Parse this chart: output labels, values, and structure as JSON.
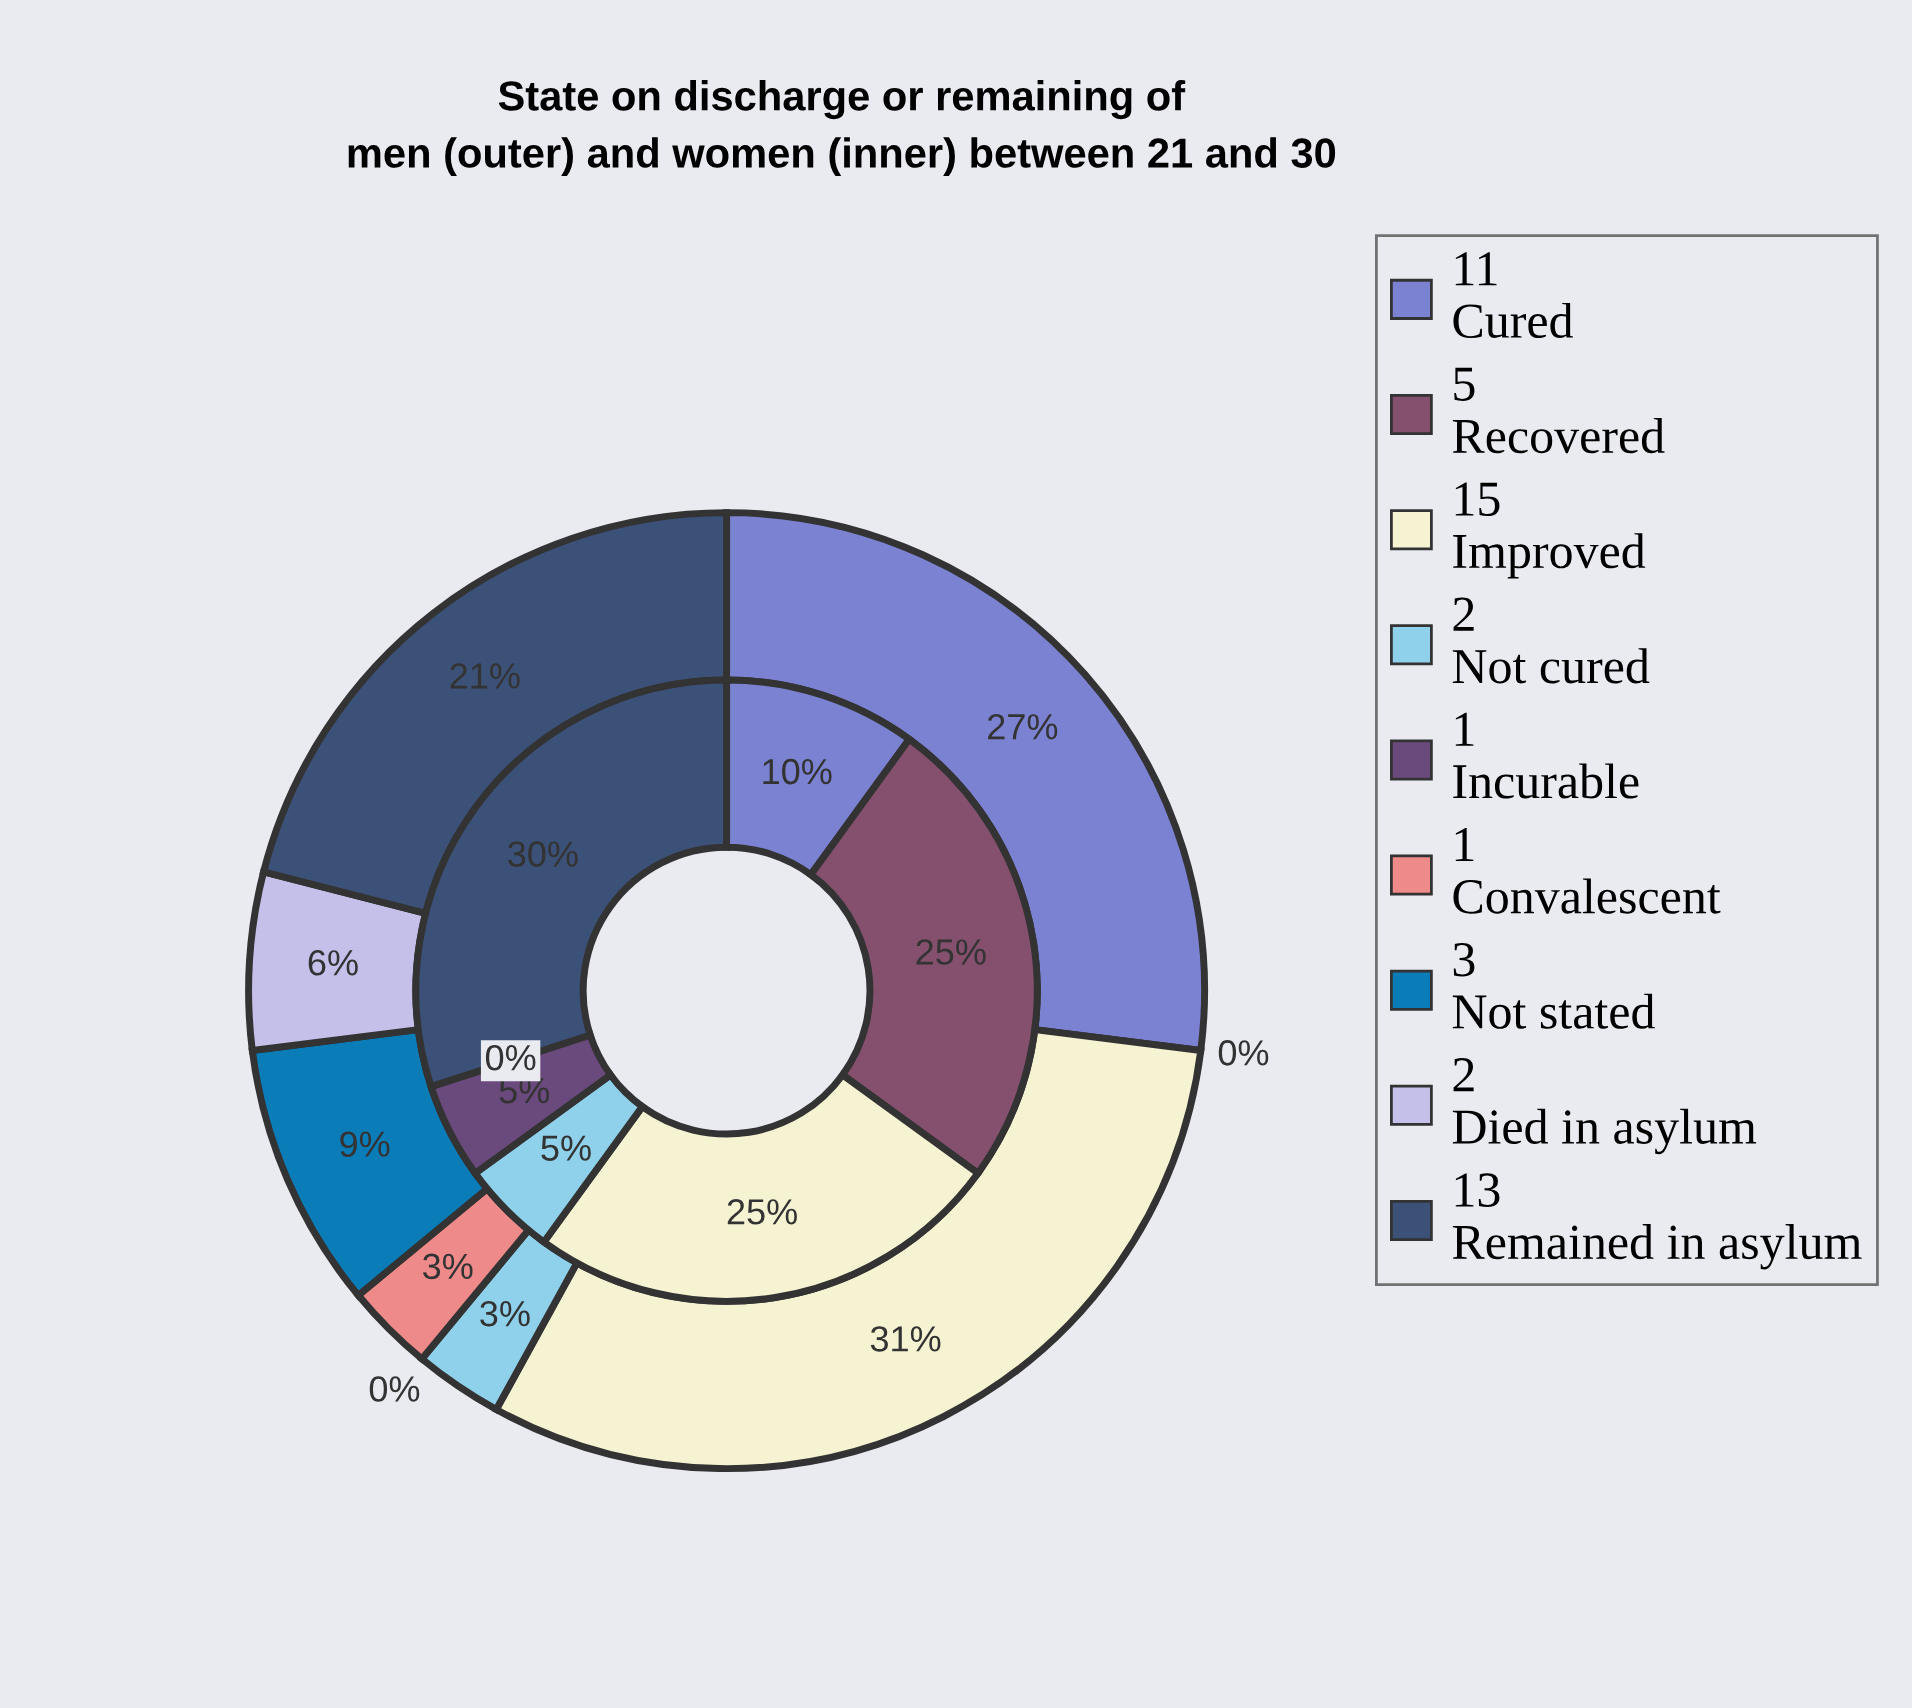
{
  "chart_data": {
    "type": "donut",
    "title": "State on discharge or remaining of\nmen (outer) and women (inner) between 21 and 30",
    "categories": [
      "11\nCured",
      "5\nRecovered",
      "15\nImproved",
      "2\nNot cured",
      "1\nIncurable",
      "1\nConvalescent",
      "3\nNot stated",
      "2\nDied in asylum",
      "13\nRemained in asylum"
    ],
    "colors": [
      "#7b82d2",
      "#84506e",
      "#f6f3d2",
      "#8fd0ea",
      "#6a4a7c",
      "#ee8a8a",
      "#0a7cb8",
      "#c4c0ea",
      "#3c5178"
    ],
    "series": [
      {
        "values": [
          27,
          0,
          31,
          3,
          0,
          3,
          9,
          6,
          21
        ],
        "value_labels": [
          "27%",
          "0%",
          "31%",
          "3%",
          "0%",
          "3%",
          "9%",
          "6%",
          "21%"
        ]
      },
      {
        "values": [
          10,
          25,
          25,
          5,
          5,
          0,
          0,
          0,
          30
        ],
        "value_labels": [
          "10%",
          "25%",
          "25%",
          "5%",
          "5%",
          null,
          null,
          "0%",
          "30%"
        ]
      }
    ],
    "legend": "right"
  }
}
